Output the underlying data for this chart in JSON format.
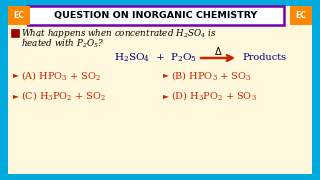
{
  "bg_color": "#00AADD",
  "content_bg": "#FFF8DC",
  "title_text": "QUESTION ON INORGANIC CHEMISTRY",
  "title_bg": "#FFFFFF",
  "title_border": "#7700AA",
  "title_color": "#000000",
  "ec_bg": "#FF8800",
  "ec_text": "EC",
  "answer_color": "#CC2200",
  "question_color": "#000000",
  "checkbox_color": "#990000",
  "arrow_color": "#CC2200",
  "reaction_color": "#000080"
}
